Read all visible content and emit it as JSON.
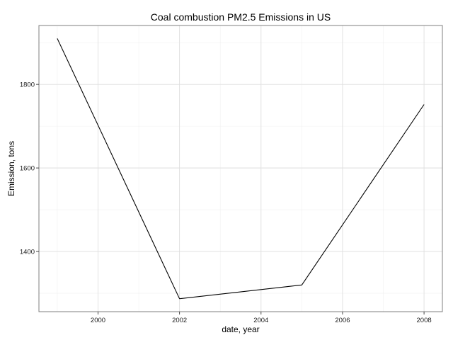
{
  "chart_data": {
    "type": "line",
    "title": "Coal combustion PM2.5 Emissions in US",
    "xlabel": "date, year",
    "ylabel": "Emission, tons",
    "x": [
      1999,
      2002,
      2005,
      2008
    ],
    "series": [
      {
        "values": [
          1910,
          1287,
          1320,
          1752
        ]
      }
    ],
    "xlim": [
      1998.55,
      2008.45
    ],
    "ylim": [
      1256,
      1941
    ],
    "xticks": [
      2000,
      2002,
      2004,
      2006,
      2008
    ],
    "xtick_labels": [
      "2000",
      "2002",
      "2004",
      "2006",
      "2008"
    ],
    "yticks": [
      1400,
      1600,
      1800
    ],
    "ytick_labels": [
      "1400",
      "1600",
      "1800"
    ],
    "grid": true,
    "legend": "none",
    "line_color": "#000000"
  }
}
